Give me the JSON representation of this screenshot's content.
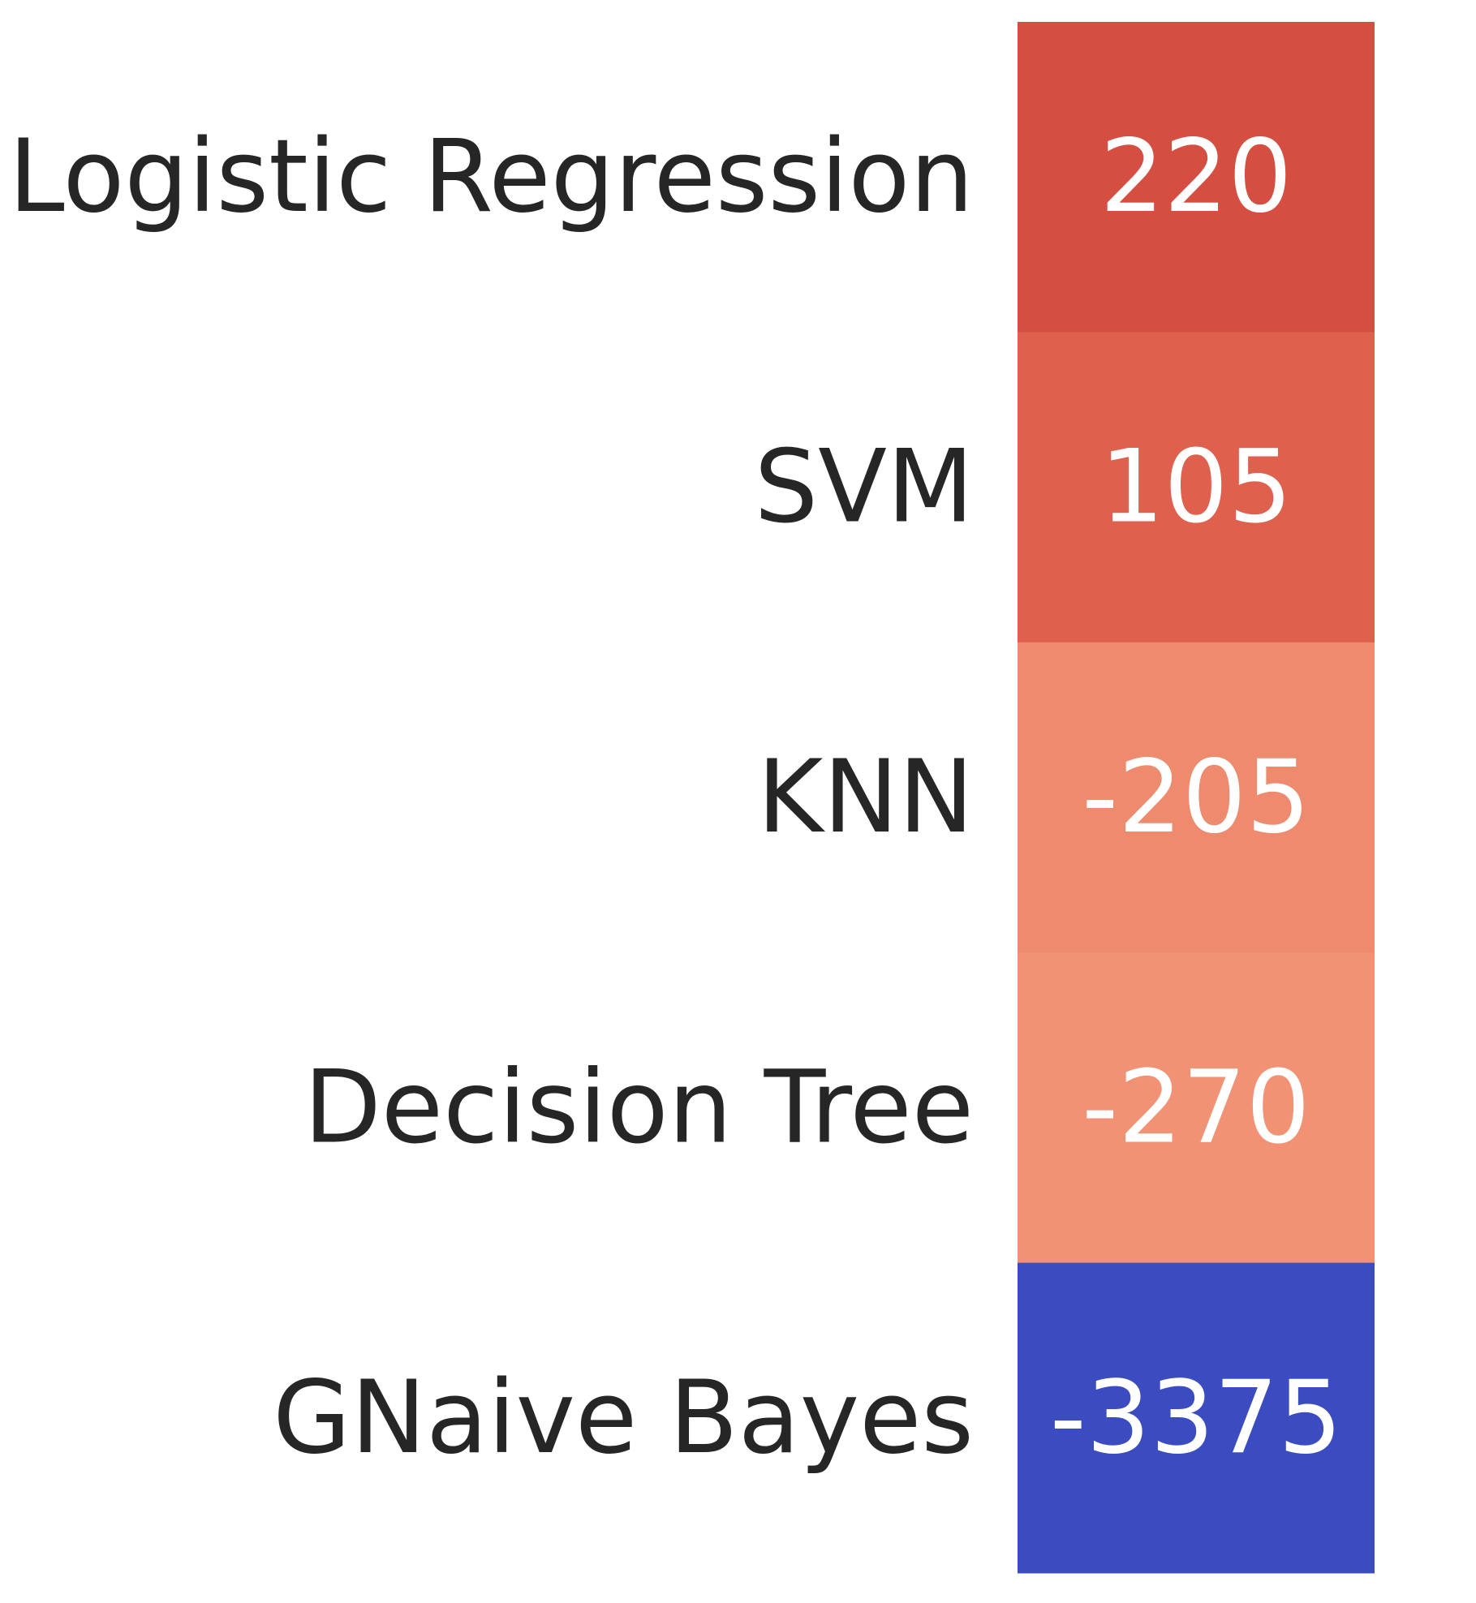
{
  "chart_data": {
    "type": "heatmap",
    "rows": [
      "Logistic Regression",
      "SVM",
      "KNN",
      "Decision Tree",
      "GNaive Bayes"
    ],
    "columns": [
      ""
    ],
    "values": [
      [
        220
      ],
      [
        105
      ],
      [
        -205
      ],
      [
        -270
      ],
      [
        -3375
      ]
    ],
    "cell_labels": [
      "220",
      "105",
      "-205",
      "-270",
      "-3375"
    ],
    "cell_colors": [
      "#d44f42",
      "#de604d",
      "#ee8a6d",
      "#f19274",
      "#3b4cc0"
    ],
    "colormap": "coolwarm",
    "title": "",
    "xlabel": "",
    "ylabel": "",
    "colorbar": false,
    "grid": false
  }
}
